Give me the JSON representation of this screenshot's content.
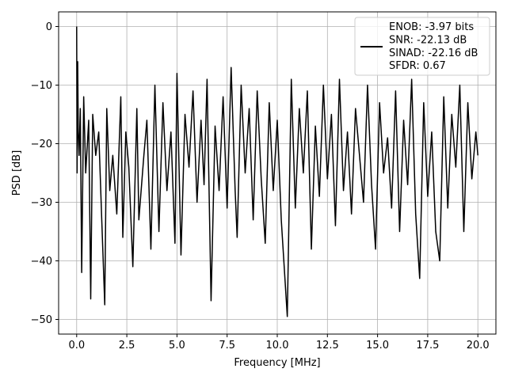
{
  "chart_data": {
    "type": "line",
    "title": "",
    "xlabel": "Frequency [MHz]",
    "ylabel": "PSD [dB]",
    "xlim": [
      -0.9,
      20.9
    ],
    "ylim": [
      -52.5,
      2.5
    ],
    "xticks": [
      0.0,
      2.5,
      5.0,
      7.5,
      10.0,
      12.5,
      15.0,
      17.5,
      20.0
    ],
    "xtick_labels": [
      "0.0",
      "2.5",
      "5.0",
      "7.5",
      "10.0",
      "12.5",
      "15.0",
      "17.5",
      "20.0"
    ],
    "yticks": [
      0,
      -10,
      -20,
      -30,
      -40,
      -50
    ],
    "ytick_labels": [
      "0",
      "−10",
      "−20",
      "−30",
      "−40",
      "−50"
    ],
    "grid": true,
    "legend_position": "top-right",
    "line_color": "#000000",
    "legend_entries": [
      "ENOB: -3.97 bits",
      "SNR: -22.13 dB",
      "SINAD: -22.16 dB",
      "SFDR: 0.67"
    ],
    "series": [
      {
        "x": [
          0.0,
          0.02,
          0.05,
          0.08,
          0.12,
          0.18,
          0.25,
          0.35,
          0.45,
          0.6,
          0.7,
          0.8,
          0.95,
          1.1,
          1.25,
          1.4,
          1.5,
          1.65,
          1.8,
          2.0,
          2.2,
          2.3,
          2.45,
          2.6,
          2.8,
          3.0,
          3.1,
          3.35,
          3.5,
          3.7,
          3.9,
          4.1,
          4.3,
          4.5,
          4.7,
          4.9,
          5.0,
          5.2,
          5.4,
          5.6,
          5.8,
          6.0,
          6.2,
          6.35,
          6.5,
          6.7,
          6.9,
          7.1,
          7.3,
          7.5,
          7.7,
          7.9,
          8.0,
          8.2,
          8.4,
          8.6,
          8.8,
          9.0,
          9.2,
          9.4,
          9.6,
          9.8,
          10.0,
          10.2,
          10.5,
          10.7,
          10.9,
          11.1,
          11.3,
          11.5,
          11.7,
          11.9,
          12.1,
          12.3,
          12.5,
          12.7,
          12.9,
          13.1,
          13.3,
          13.5,
          13.7,
          13.9,
          14.1,
          14.3,
          14.5,
          14.7,
          14.9,
          15.1,
          15.3,
          15.5,
          15.7,
          15.9,
          16.1,
          16.3,
          16.5,
          16.7,
          16.9,
          17.1,
          17.3,
          17.5,
          17.7,
          17.9,
          18.1,
          18.3,
          18.5,
          18.7,
          18.9,
          19.1,
          19.3,
          19.5,
          19.7,
          19.9,
          20.0
        ],
        "y": [
          0.0,
          -25.0,
          -6.0,
          -18.0,
          -22.0,
          -14.0,
          -42.0,
          -12.0,
          -25.0,
          -16.0,
          -46.5,
          -15.0,
          -22.0,
          -18.0,
          -33.0,
          -47.5,
          -14.0,
          -28.0,
          -22.0,
          -32.0,
          -12.0,
          -36.0,
          -18.0,
          -24.0,
          -41.0,
          -14.0,
          -33.0,
          -22.0,
          -16.0,
          -38.0,
          -10.0,
          -35.0,
          -13.0,
          -28.0,
          -18.0,
          -37.0,
          -8.0,
          -39.0,
          -15.0,
          -24.0,
          -11.0,
          -30.0,
          -16.0,
          -27.0,
          -9.0,
          -46.8,
          -17.0,
          -28.0,
          -12.0,
          -31.0,
          -7.0,
          -28.0,
          -36.0,
          -10.0,
          -25.0,
          -14.0,
          -33.0,
          -11.0,
          -26.0,
          -37.0,
          -13.0,
          -28.0,
          -16.0,
          -33.0,
          -49.5,
          -9.0,
          -31.0,
          -14.0,
          -25.0,
          -11.0,
          -38.0,
          -17.0,
          -29.0,
          -10.0,
          -26.0,
          -15.0,
          -34.0,
          -9.0,
          -28.0,
          -18.0,
          -32.0,
          -14.0,
          -22.0,
          -30.0,
          -10.0,
          -27.0,
          -38.0,
          -13.0,
          -25.0,
          -19.0,
          -31.0,
          -11.0,
          -35.0,
          -16.0,
          -27.0,
          -9.0,
          -32.0,
          -43.0,
          -13.0,
          -29.0,
          -18.0,
          -35.0,
          -40.0,
          -12.0,
          -31.0,
          -15.0,
          -24.0,
          -10.0,
          -35.0,
          -13.0,
          -26.0,
          -18.0,
          -22.0
        ]
      }
    ]
  }
}
